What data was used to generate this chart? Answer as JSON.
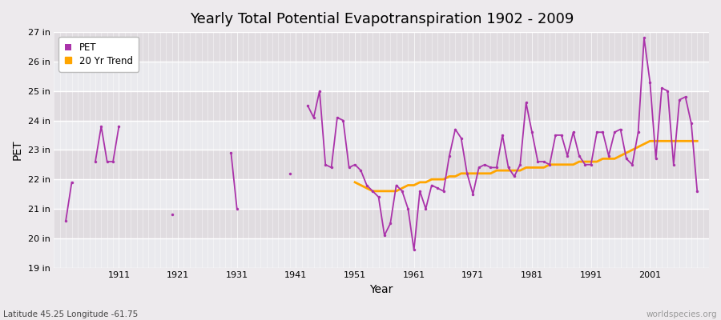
{
  "title": "Yearly Total Potential Evapotranspiration 1902 - 2009",
  "xlabel": "Year",
  "ylabel": "PET",
  "bottom_left_label": "Latitude 45.25 Longitude -61.75",
  "bottom_right_label": "worldspecies.org",
  "pet_color": "#AA33AA",
  "trend_color": "#FFA500",
  "bg_color": "#EDEAED",
  "plot_bg_color": "#E5E0E5",
  "ylim_min": 19,
  "ylim_max": 27,
  "ytick_vals": [
    19,
    20,
    21,
    22,
    23,
    24,
    25,
    26,
    27
  ],
  "ytick_labels": [
    "19 in",
    "20 in",
    "21 in",
    "22 in",
    "23 in",
    "24 in",
    "25 in",
    "26 in",
    "27 in"
  ],
  "xlim_min": 1900,
  "xlim_max": 2011,
  "xtick_positions": [
    1911,
    1921,
    1931,
    1941,
    1951,
    1961,
    1971,
    1981,
    1991,
    2001
  ],
  "years": [
    1902,
    1903,
    1904,
    1905,
    1906,
    1907,
    1908,
    1909,
    1910,
    1911,
    1912,
    1913,
    1914,
    1915,
    1916,
    1917,
    1918,
    1919,
    1920,
    1921,
    1922,
    1923,
    1924,
    1925,
    1926,
    1927,
    1928,
    1929,
    1930,
    1931,
    1932,
    1933,
    1934,
    1935,
    1936,
    1937,
    1938,
    1939,
    1940,
    1941,
    1942,
    1943,
    1944,
    1945,
    1946,
    1947,
    1948,
    1949,
    1950,
    1951,
    1952,
    1953,
    1954,
    1955,
    1956,
    1957,
    1958,
    1959,
    1960,
    1961,
    1962,
    1963,
    1964,
    1965,
    1966,
    1967,
    1968,
    1969,
    1970,
    1971,
    1972,
    1973,
    1974,
    1975,
    1976,
    1977,
    1978,
    1979,
    1980,
    1981,
    1982,
    1983,
    1984,
    1985,
    1986,
    1987,
    1988,
    1989,
    1990,
    1991,
    1992,
    1993,
    1994,
    1995,
    1996,
    1997,
    1998,
    1999,
    2000,
    2001,
    2002,
    2003,
    2004,
    2005,
    2006,
    2007,
    2008,
    2009
  ],
  "pet_values": [
    20.6,
    21.9,
    null,
    null,
    null,
    null,
    null,
    null,
    null,
    22.6,
    23.8,
    null,
    null,
    null,
    null,
    null,
    null,
    null,
    null,
    20.8,
    null,
    null,
    null,
    null,
    null,
    null,
    null,
    null,
    null,
    22.9,
    21.0,
    null,
    null,
    null,
    null,
    null,
    null,
    null,
    null,
    22.2,
    null,
    null,
    null,
    null,
    null,
    null,
    null,
    null,
    null,
    24.5,
    24.1,
    null,
    null,
    null,
    null,
    null,
    null,
    null,
    null,
    22.4,
    null,
    null,
    null,
    null,
    null,
    null,
    null,
    null,
    null,
    21.0,
    null,
    null,
    null,
    null,
    null,
    null,
    null,
    null,
    null,
    20.1,
    null,
    null,
    null,
    null,
    null,
    null,
    null,
    null,
    null,
    19.7,
    null,
    null,
    null,
    null,
    null,
    null,
    null,
    null,
    null,
    26.9,
    null,
    null,
    null,
    null,
    null,
    null,
    null,
    null
  ],
  "pet_values_real": {
    "1902": 20.6,
    "1903": 21.9,
    "1907": 22.6,
    "1908": 23.8,
    "1909": 22.6,
    "1910": 22.6,
    "1911": 23.8,
    "1920": 20.8,
    "1930": 22.9,
    "1931": 21.0,
    "1940": 22.2,
    "1943": 24.5,
    "1944": 24.1,
    "1945": 25.0,
    "1946": 22.5,
    "1947": 22.4,
    "1948": 24.1,
    "1949": 24.0,
    "1950": 22.4,
    "1951": 22.5,
    "1952": 22.3,
    "1953": 21.8,
    "1954": 21.6,
    "1955": 21.4,
    "1956": 20.1,
    "1957": 20.5,
    "1958": 21.8,
    "1959": 21.6,
    "1960": 21.0,
    "1961": 19.6,
    "1962": 21.6,
    "1963": 21.0,
    "1964": 21.8,
    "1965": 21.7,
    "1966": 21.6,
    "1967": 22.8,
    "1968": 23.7,
    "1969": 23.4,
    "1970": 22.2,
    "1971": 21.5,
    "1972": 22.4,
    "1973": 22.5,
    "1974": 22.4,
    "1975": 22.4,
    "1976": 23.5,
    "1977": 22.4,
    "1978": 22.1,
    "1979": 22.5,
    "1980": 24.6,
    "1981": 23.6,
    "1982": 22.6,
    "1983": 22.6,
    "1984": 22.5,
    "1985": 23.5,
    "1986": 23.5,
    "1987": 22.8,
    "1988": 23.6,
    "1989": 22.8,
    "1990": 22.5,
    "1991": 22.5,
    "1992": 23.6,
    "1993": 23.6,
    "1994": 22.8,
    "1995": 23.6,
    "1996": 23.7,
    "1997": 22.7,
    "1998": 22.5,
    "1999": 23.6,
    "2000": 26.8,
    "2001": 25.3,
    "2002": 22.7,
    "2003": 25.1,
    "2004": 25.0,
    "2005": 22.5,
    "2006": 24.7,
    "2007": 24.8,
    "2008": 23.9,
    "2009": 21.6
  },
  "trend_years": [
    1951,
    1952,
    1953,
    1954,
    1955,
    1956,
    1957,
    1958,
    1959,
    1960,
    1961,
    1962,
    1963,
    1964,
    1965,
    1966,
    1967,
    1968,
    1969,
    1970,
    1971,
    1972,
    1973,
    1974,
    1975,
    1976,
    1977,
    1978,
    1979,
    1980,
    1981,
    1982,
    1983,
    1984,
    1985,
    1986,
    1987,
    1988,
    1989,
    1990,
    1991,
    1992,
    1993,
    1994,
    1995,
    1996,
    1997,
    1998,
    1999,
    2000,
    2001,
    2002,
    2003,
    2004,
    2005,
    2006,
    2007,
    2008,
    2009
  ],
  "trend_values": [
    21.9,
    21.8,
    21.7,
    21.6,
    21.6,
    21.6,
    21.6,
    21.6,
    21.7,
    21.8,
    21.8,
    21.9,
    21.9,
    22.0,
    22.0,
    22.0,
    22.1,
    22.1,
    22.2,
    22.2,
    22.2,
    22.2,
    22.2,
    22.2,
    22.3,
    22.3,
    22.3,
    22.3,
    22.3,
    22.4,
    22.4,
    22.4,
    22.4,
    22.5,
    22.5,
    22.5,
    22.5,
    22.5,
    22.6,
    22.6,
    22.6,
    22.6,
    22.7,
    22.7,
    22.7,
    22.8,
    22.9,
    23.0,
    23.1,
    23.2,
    23.3,
    23.3,
    23.3,
    23.3,
    23.3,
    23.3,
    23.3,
    23.3,
    23.3
  ]
}
